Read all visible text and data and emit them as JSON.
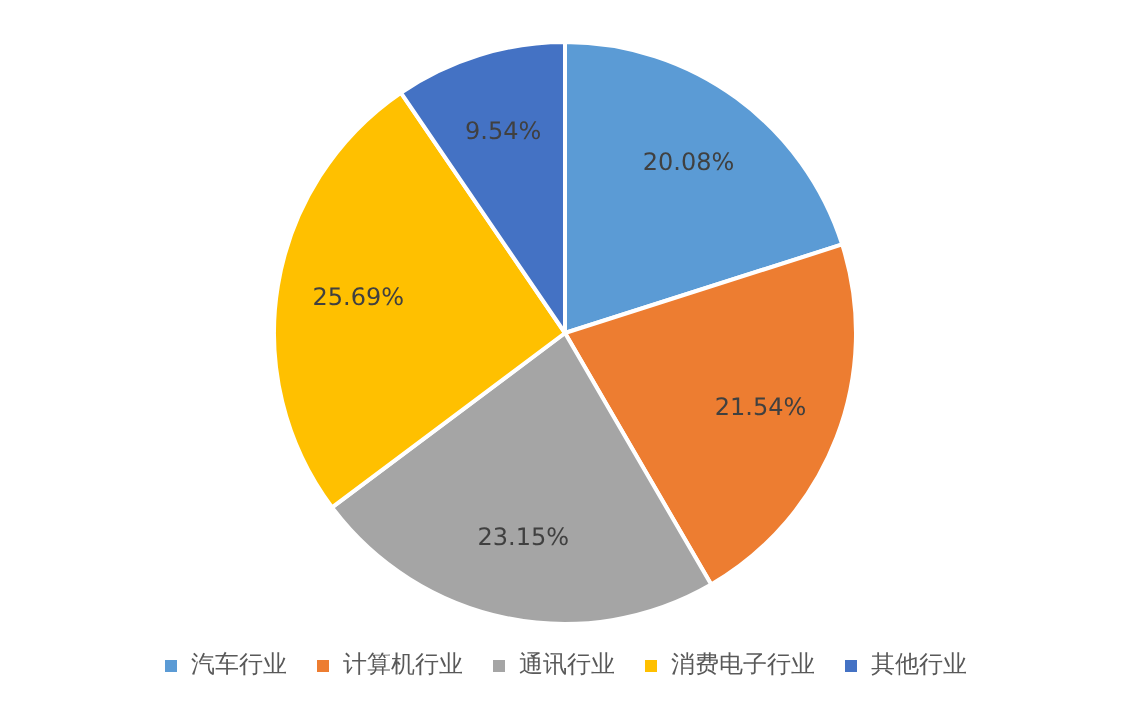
{
  "chart_data": {
    "type": "pie",
    "categories": [
      "汽车行业",
      "计算机行业",
      "通讯行业",
      "消费电子行业",
      "其他行业"
    ],
    "values": [
      20.08,
      21.54,
      23.15,
      25.69,
      9.54
    ],
    "colors": [
      "#5b9bd5",
      "#ed7d31",
      "#a5a5a5",
      "#ffc000",
      "#4472c4"
    ],
    "value_labels": [
      "20.08%",
      "21.54%",
      "23.15%",
      "25.69%",
      "9.54%"
    ],
    "legend": "bottom"
  }
}
